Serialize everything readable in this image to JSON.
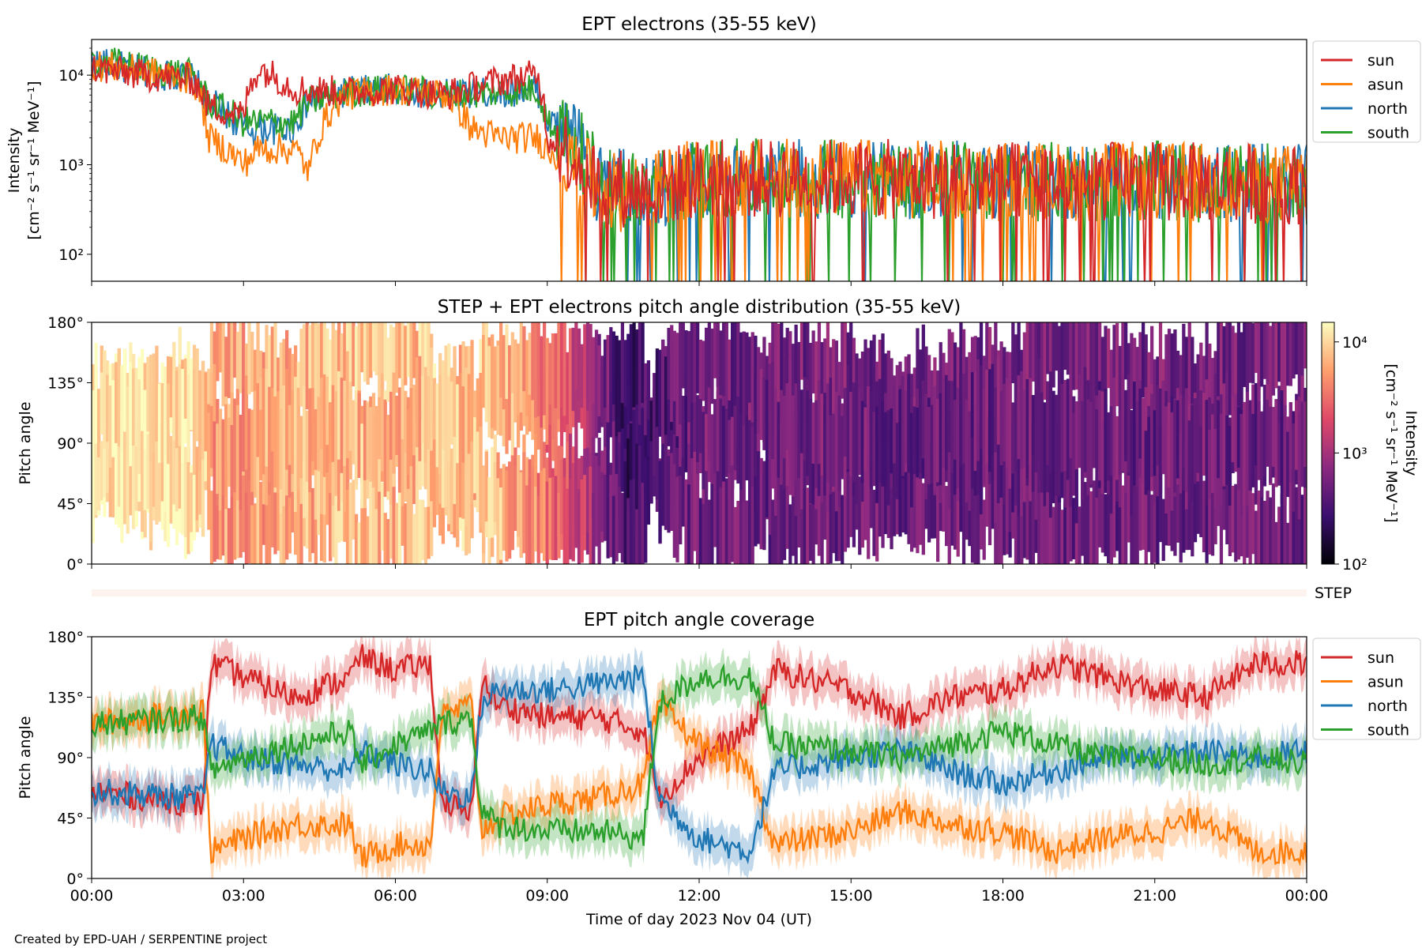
{
  "chart_data": [
    {
      "type": "line",
      "title": "EPT electrons (35-55 keV)",
      "ylabel_lines": [
        "Intensity",
        "[cm⁻² s⁻¹ sr⁻¹ MeV⁻¹]"
      ],
      "yscale": "log",
      "ylim": [
        50,
        25000
      ],
      "yticks": [
        {
          "value": 100,
          "label": "10²"
        },
        {
          "value": 1000,
          "label": "10³"
        },
        {
          "value": 10000,
          "label": "10⁴"
        }
      ],
      "xlim": [
        0,
        24
      ],
      "legend_position": "outside-right",
      "series": [
        {
          "name": "sun",
          "color": "#d62728",
          "hours": [
            0,
            1,
            2,
            2.3,
            3,
            3.3,
            4,
            5,
            6,
            7,
            8,
            8.8,
            9,
            10,
            11,
            12,
            15,
            18,
            21,
            24
          ],
          "values": [
            12000,
            10000,
            9000,
            4500,
            3500,
            12000,
            7000,
            6500,
            7000,
            6000,
            8500,
            10000,
            2000,
            600,
            500,
            700,
            700,
            650,
            650,
            600
          ]
        },
        {
          "name": "asun",
          "color": "#ff7f0e",
          "hours": [
            0,
            1,
            2,
            2.3,
            3,
            3.3,
            4,
            4.3,
            5,
            6,
            7,
            7.5,
            8,
            8.8,
            9,
            10,
            11,
            12,
            15,
            18,
            21,
            24
          ],
          "values": [
            13000,
            11000,
            9000,
            2000,
            1000,
            1500,
            1500,
            800,
            6000,
            7000,
            6000,
            2500,
            2000,
            2000,
            1500,
            500,
            500,
            700,
            700,
            650,
            650,
            600
          ]
        },
        {
          "name": "north",
          "color": "#1f77b4",
          "hours": [
            0,
            1,
            2,
            2.3,
            3,
            4,
            4.3,
            5,
            6,
            7,
            8,
            8.8,
            9,
            10,
            11,
            12,
            15,
            18,
            21,
            24
          ],
          "values": [
            14000,
            11000,
            9000,
            5000,
            2500,
            2500,
            5000,
            6500,
            7000,
            6000,
            6500,
            7000,
            3000,
            600,
            500,
            700,
            700,
            650,
            650,
            600
          ]
        },
        {
          "name": "south",
          "color": "#2ca02c",
          "hours": [
            0,
            1,
            2,
            2.3,
            3,
            4,
            4.3,
            5,
            6,
            7,
            8,
            8.8,
            9,
            10,
            11,
            12,
            15,
            18,
            21,
            24
          ],
          "values": [
            15000,
            12000,
            10000,
            5000,
            3000,
            3000,
            5000,
            6500,
            7000,
            6000,
            6500,
            7000,
            3000,
            600,
            500,
            700,
            700,
            650,
            650,
            600
          ]
        }
      ]
    },
    {
      "type": "heatmap",
      "title": "STEP + EPT electrons pitch angle distribution (35-55 keV)",
      "ylabel": "Pitch angle",
      "ylim": [
        0,
        180
      ],
      "yticks": [
        "0°",
        "45°",
        "90°",
        "135°",
        "180°"
      ],
      "xlim": [
        0,
        24
      ],
      "colorbar": {
        "scale": "log",
        "range": [
          100,
          15000
        ],
        "ticks": [
          {
            "value": 100,
            "label": "10²"
          },
          {
            "value": 1000,
            "label": "10³"
          },
          {
            "value": 10000,
            "label": "10⁴"
          }
        ],
        "label_lines": [
          "Intensity",
          "[cm⁻² s⁻¹ sr⁻¹ MeV⁻¹]"
        ],
        "colormap": "inferno"
      },
      "intensity_by_hour": {
        "hours": [
          0,
          2.2,
          2.3,
          5,
          8,
          9,
          10,
          10.5,
          12,
          24
        ],
        "values": [
          12000,
          11000,
          5000,
          7000,
          7500,
          3000,
          700,
          250,
          500,
          500
        ]
      }
    },
    {
      "type": "band",
      "label": "STEP",
      "color": "#fdf3ee"
    },
    {
      "type": "line",
      "title": "EPT pitch angle coverage",
      "ylabel": "Pitch angle",
      "ylim": [
        0,
        180
      ],
      "yticks": [
        "0°",
        "45°",
        "90°",
        "135°",
        "180°"
      ],
      "xlim": [
        0,
        24
      ],
      "xticks": [
        "00:00",
        "03:00",
        "06:00",
        "09:00",
        "12:00",
        "15:00",
        "18:00",
        "21:00",
        "00:00"
      ],
      "xlabel": "Time of day 2023 Nov 04 (UT)",
      "legend_position": "outside-right",
      "series": [
        {
          "name": "sun",
          "color": "#d62728",
          "hours": [
            0,
            2.2,
            2.35,
            3,
            4,
            5.1,
            5.3,
            6,
            6.7,
            6.9,
            7.5,
            7.7,
            8,
            9,
            10,
            10.9,
            11.2,
            12,
            13,
            13.5,
            15,
            16,
            17,
            18,
            19,
            20,
            21,
            22,
            23,
            24
          ],
          "values": [
            65,
            55,
            160,
            150,
            135,
            150,
            165,
            155,
            160,
            60,
            45,
            150,
            130,
            120,
            120,
            110,
            60,
            90,
            110,
            155,
            140,
            120,
            135,
            140,
            160,
            150,
            140,
            135,
            160,
            160
          ]
        },
        {
          "name": "asun",
          "color": "#ff7f0e",
          "hours": [
            0,
            2.2,
            2.35,
            3,
            4,
            5.1,
            5.3,
            6,
            6.7,
            6.9,
            7.5,
            7.7,
            8,
            9,
            10,
            10.9,
            11.2,
            12,
            13,
            13.5,
            15,
            16,
            17,
            18,
            19,
            20,
            21,
            22,
            23,
            24
          ],
          "values": [
            115,
            125,
            20,
            30,
            40,
            40,
            15,
            25,
            25,
            120,
            130,
            35,
            45,
            55,
            60,
            70,
            130,
            100,
            80,
            25,
            35,
            50,
            40,
            35,
            20,
            30,
            35,
            45,
            20,
            20
          ]
        },
        {
          "name": "north",
          "color": "#1f77b4",
          "hours": [
            0,
            2.2,
            2.35,
            3,
            4,
            5.1,
            5.3,
            6,
            6.7,
            6.9,
            7.5,
            7.7,
            8,
            9,
            10,
            10.9,
            11.2,
            12,
            13,
            13.5,
            15,
            16,
            17,
            18,
            19,
            20,
            21,
            22,
            23,
            24
          ],
          "values": [
            65,
            60,
            100,
            90,
            85,
            80,
            95,
            85,
            80,
            65,
            60,
            130,
            140,
            140,
            145,
            150,
            60,
            30,
            20,
            80,
            90,
            95,
            80,
            70,
            80,
            90,
            90,
            95,
            90,
            95
          ]
        },
        {
          "name": "south",
          "color": "#2ca02c",
          "hours": [
            0,
            2.2,
            2.35,
            3,
            4,
            5.1,
            5.3,
            6,
            6.7,
            6.9,
            7.5,
            7.7,
            8,
            9,
            10,
            10.9,
            11.2,
            12,
            13,
            13.5,
            15,
            16,
            17,
            18,
            19,
            20,
            21,
            22,
            23,
            24
          ],
          "values": [
            115,
            120,
            80,
            90,
            100,
            110,
            85,
            100,
            110,
            115,
            120,
            50,
            40,
            35,
            35,
            30,
            130,
            150,
            150,
            100,
            95,
            90,
            100,
            110,
            100,
            90,
            90,
            85,
            90,
            85
          ]
        }
      ]
    }
  ],
  "footer": {
    "credit": "Created by EPD-UAH / SERPENTINE project"
  }
}
